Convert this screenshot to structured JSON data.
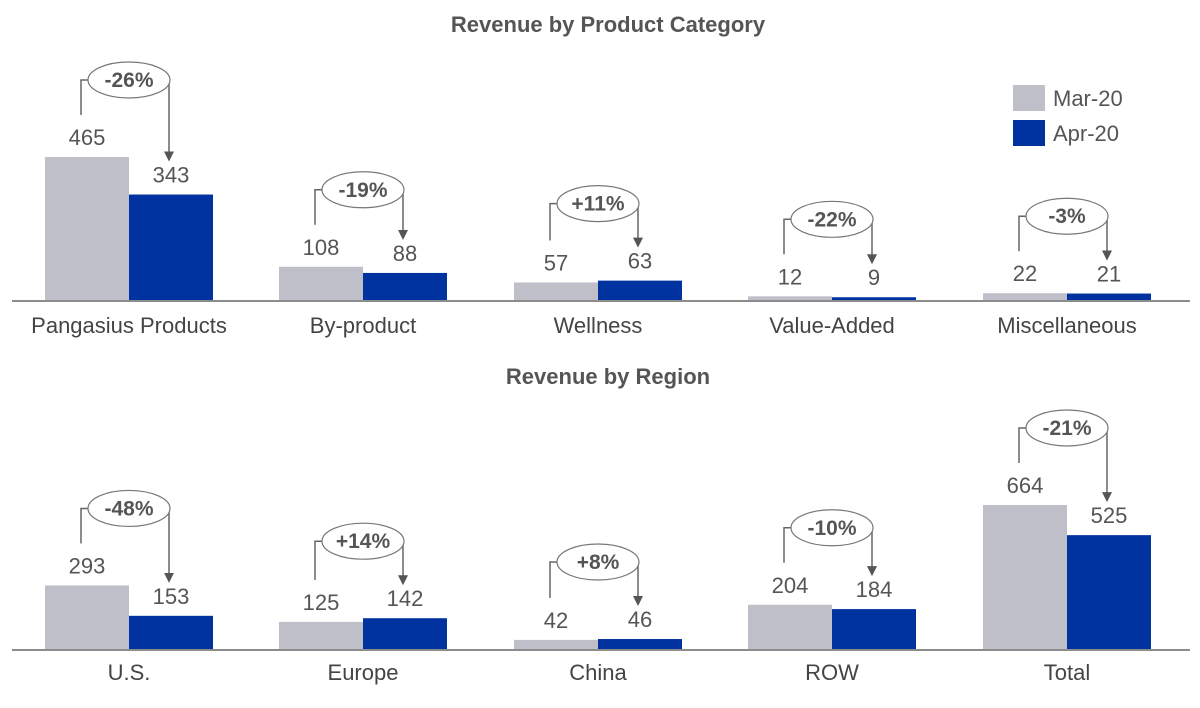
{
  "legend": [
    {
      "label": "Mar-20",
      "color": "#BEBFC9"
    },
    {
      "label": "Apr-20",
      "color": "#0033A0"
    }
  ],
  "chart_data": [
    {
      "type": "bar",
      "title": "Revenue by Product Category",
      "categories": [
        "Pangasius Products",
        "By-product",
        "Wellness",
        "Value-Added",
        "Miscellaneous"
      ],
      "series": [
        {
          "name": "Mar-20",
          "values": [
            465,
            108,
            57,
            12,
            22
          ]
        },
        {
          "name": "Apr-20",
          "values": [
            343,
            88,
            63,
            9,
            21
          ]
        }
      ],
      "changes": [
        "-26%",
        "-19%",
        "+11%",
        "-22%",
        "-3%"
      ],
      "legend_position": "top-right"
    },
    {
      "type": "bar",
      "title": "Revenue by Region",
      "categories": [
        "U.S.",
        "Europe",
        "China",
        "ROW",
        "Total"
      ],
      "series": [
        {
          "name": "Mar-20",
          "values": [
            293,
            125,
            42,
            204,
            664
          ]
        },
        {
          "name": "Apr-20",
          "values": [
            153,
            142,
            46,
            184,
            525
          ]
        }
      ],
      "changes": [
        "-48%",
        "+14%",
        "+8%",
        "-10%",
        "-21%"
      ]
    }
  ]
}
